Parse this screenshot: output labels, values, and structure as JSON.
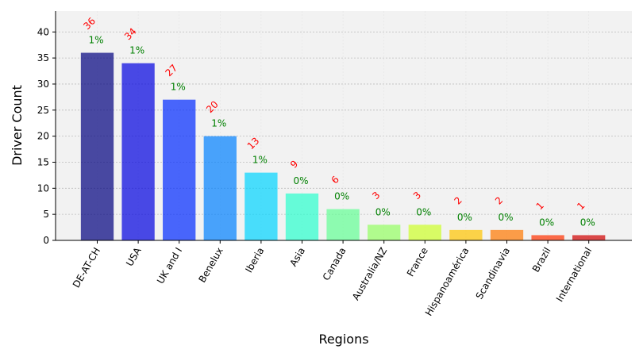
{
  "chart_data": {
    "type": "bar",
    "title": "",
    "xlabel": "Regions",
    "ylabel": "Driver Count",
    "categories": [
      "DE-AT-CH",
      "USA",
      "UK and I",
      "Benelux",
      "Iberia",
      "Asia",
      "Canada",
      "Australia/NZ",
      "France",
      "Hispanoamérica",
      "Scandinavia",
      "Brazil",
      "International"
    ],
    "values": [
      36,
      34,
      27,
      20,
      13,
      9,
      6,
      3,
      3,
      2,
      2,
      1,
      1
    ],
    "value_labels": [
      "36",
      "34",
      "27",
      "20",
      "13",
      "9",
      "6",
      "3",
      "3",
      "2",
      "2",
      "1",
      "1"
    ],
    "percent_labels": [
      "1%",
      "1%",
      "1%",
      "1%",
      "1%",
      "0%",
      "0%",
      "0%",
      "0%",
      "0%",
      "0%",
      "0%",
      "0%"
    ],
    "colors": [
      "#00007f",
      "#0000e0",
      "#0029ff",
      "#0080ff",
      "#00d4ff",
      "#29ffcd",
      "#62ff94",
      "#94ff62",
      "#cdff29",
      "#ffc400",
      "#ff7700",
      "#ff3000",
      "#d00000"
    ],
    "ylim": [
      0,
      44
    ],
    "yticks": [
      "0",
      "5",
      "10",
      "15",
      "20",
      "25",
      "30",
      "35",
      "40"
    ],
    "grid": true,
    "plot_background": "#f2f2f2",
    "value_label_color": "#ff0000",
    "percent_label_color": "#008000"
  }
}
